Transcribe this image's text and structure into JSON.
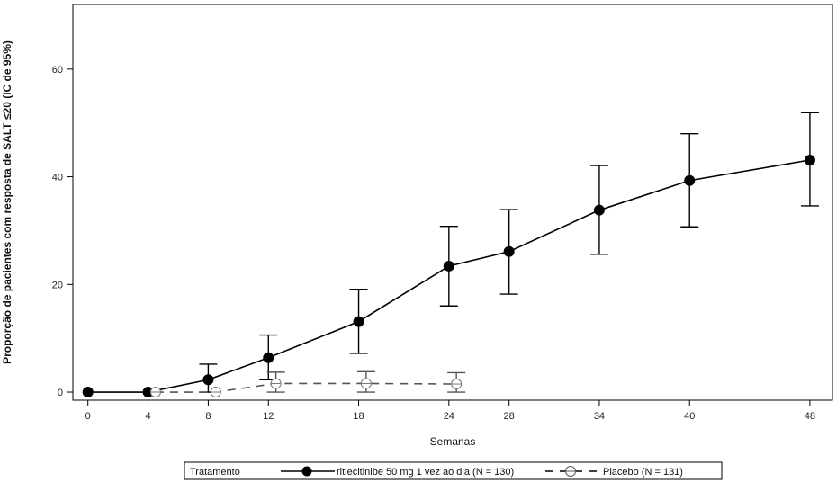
{
  "chart_data": {
    "type": "line",
    "xlabel": "Semanas",
    "ylabel": "Proporção de pacientes com resposta de SALT ≤20 (IC de 95%)",
    "x_ticks": [
      0,
      4,
      8,
      12,
      18,
      24,
      28,
      34,
      40,
      48
    ],
    "y_ticks": [
      0,
      20,
      40,
      60
    ],
    "xlim": [
      -1,
      49.5
    ],
    "ylim": [
      -1.5,
      72
    ],
    "grid": false,
    "legend": {
      "position": "bottom",
      "title": "Tratamento",
      "entries": [
        "ritlecitinibe 50 mg 1 vez ao dia (N = 130)",
        "Placebo (N = 131)"
      ]
    },
    "series": [
      {
        "name": "ritlecitinibe 50 mg 1 vez ao dia (N = 130)",
        "line_style": "solid",
        "marker": "filled-circle",
        "color": "#000000",
        "points": [
          {
            "x": 0,
            "y": 0,
            "lower": 0,
            "upper": 0
          },
          {
            "x": 4,
            "y": 0,
            "lower": 0,
            "upper": 0
          },
          {
            "x": 8,
            "y": 2.3,
            "lower": 0,
            "upper": 5.2
          },
          {
            "x": 12,
            "y": 6.4,
            "lower": 2.3,
            "upper": 10.6
          },
          {
            "x": 18,
            "y": 13.1,
            "lower": 7.2,
            "upper": 19.1
          },
          {
            "x": 24,
            "y": 23.4,
            "lower": 16.0,
            "upper": 30.8
          },
          {
            "x": 28,
            "y": 26.1,
            "lower": 18.2,
            "upper": 33.9
          },
          {
            "x": 34,
            "y": 33.8,
            "lower": 25.6,
            "upper": 42.1
          },
          {
            "x": 40,
            "y": 39.3,
            "lower": 30.7,
            "upper": 48.0
          },
          {
            "x": 48,
            "y": 43.1,
            "lower": 34.6,
            "upper": 51.9
          }
        ]
      },
      {
        "name": "Placebo (N = 131)",
        "line_style": "dashed",
        "marker": "open-circle",
        "color": "#555555",
        "points": [
          {
            "x": 4.5,
            "y": 0,
            "lower": 0,
            "upper": 0
          },
          {
            "x": 8.5,
            "y": 0,
            "lower": 0,
            "upper": 0
          },
          {
            "x": 12.5,
            "y": 1.6,
            "lower": 0,
            "upper": 3.7
          },
          {
            "x": 18.5,
            "y": 1.6,
            "lower": 0,
            "upper": 3.8
          },
          {
            "x": 24.5,
            "y": 1.5,
            "lower": 0,
            "upper": 3.6
          }
        ]
      }
    ]
  }
}
